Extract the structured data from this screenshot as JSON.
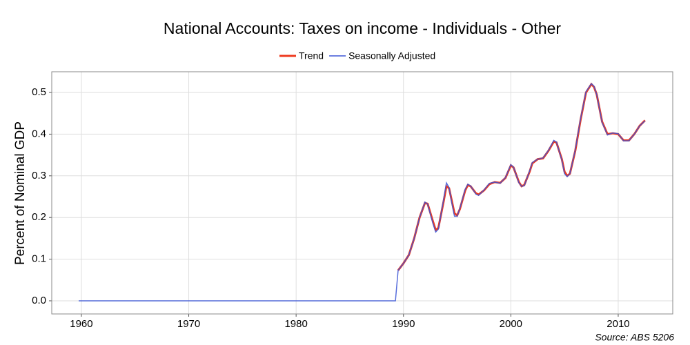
{
  "chart_data": {
    "type": "line",
    "title": "National Accounts: Taxes on income - Individuals - Other",
    "y_label": "Percent of Nominal GDP",
    "annotation": "Source: ABS 5206",
    "xlim": [
      1957.24,
      2015.08
    ],
    "ylim": [
      -0.0315,
      0.5497
    ],
    "xticks": [
      1960,
      1970,
      1980,
      1990,
      2000,
      2010
    ],
    "yticks": [
      {
        "value": 0,
        "label": "0.0"
      },
      0.1,
      0.2,
      0.3,
      0.4,
      0.5
    ],
    "grid": true,
    "legend": "top",
    "series": [
      {
        "name": "Trend",
        "color": "#ee3a1f",
        "x": [
          1989.5,
          1990,
          1990.5,
          1991,
          1991.5,
          1992,
          1992.25,
          1992.75,
          1993,
          1993.25,
          1993.75,
          1994,
          1994.25,
          1994.5,
          1994.75,
          1995,
          1995.25,
          1995.75,
          1996,
          1996.25,
          1996.75,
          1997,
          1997.5,
          1998,
          1998.5,
          1999,
          1999.5,
          2000,
          2000.25,
          2000.75,
          2001,
          2001.25,
          2001.75,
          2002,
          2002.5,
          2003,
          2003.5,
          2004,
          2004.25,
          2004.75,
          2005,
          2005.25,
          2005.5,
          2006,
          2006.5,
          2007,
          2007.5,
          2007.75,
          2008,
          2008.5,
          2009,
          2009.5,
          2010,
          2010.5,
          2011,
          2011.5,
          2012,
          2012.5
        ],
        "values": [
          0.073,
          0.09,
          0.11,
          0.15,
          0.2,
          0.235,
          0.233,
          0.19,
          0.17,
          0.175,
          0.24,
          0.275,
          0.27,
          0.24,
          0.21,
          0.205,
          0.22,
          0.265,
          0.278,
          0.275,
          0.258,
          0.255,
          0.265,
          0.28,
          0.285,
          0.283,
          0.295,
          0.325,
          0.32,
          0.285,
          0.275,
          0.278,
          0.31,
          0.33,
          0.34,
          0.342,
          0.36,
          0.382,
          0.38,
          0.34,
          0.31,
          0.3,
          0.305,
          0.36,
          0.435,
          0.5,
          0.52,
          0.513,
          0.495,
          0.43,
          0.4,
          0.402,
          0.4,
          0.385,
          0.385,
          0.4,
          0.42,
          0.433
        ]
      },
      {
        "name": "Seasonally Adjusted",
        "color": "#3b55d6",
        "x": [
          1959.75,
          1989.25,
          1989.5,
          1990,
          1990.5,
          1991,
          1991.5,
          1992,
          1992.25,
          1992.75,
          1993,
          1993.25,
          1993.75,
          1994,
          1994.25,
          1994.5,
          1994.75,
          1995,
          1995.25,
          1995.75,
          1996,
          1996.25,
          1996.75,
          1997,
          1997.5,
          1998,
          1998.5,
          1999,
          1999.5,
          2000,
          2000.25,
          2000.75,
          2001,
          2001.25,
          2001.75,
          2002,
          2002.5,
          2003,
          2003.5,
          2004,
          2004.25,
          2004.75,
          2005,
          2005.25,
          2005.5,
          2006,
          2006.5,
          2007,
          2007.5,
          2007.75,
          2008,
          2008.5,
          2009,
          2009.5,
          2010,
          2010.5,
          2011,
          2011.5,
          2012,
          2012.5
        ],
        "values": [
          0,
          0,
          0.073,
          0.09,
          0.11,
          0.15,
          0.2,
          0.237,
          0.232,
          0.185,
          0.165,
          0.172,
          0.245,
          0.283,
          0.272,
          0.235,
          0.203,
          0.203,
          0.222,
          0.268,
          0.28,
          0.276,
          0.256,
          0.253,
          0.266,
          0.282,
          0.285,
          0.282,
          0.296,
          0.327,
          0.321,
          0.283,
          0.275,
          0.276,
          0.312,
          0.332,
          0.34,
          0.343,
          0.361,
          0.385,
          0.381,
          0.338,
          0.305,
          0.298,
          0.305,
          0.362,
          0.438,
          0.502,
          0.521,
          0.515,
          0.495,
          0.428,
          0.398,
          0.403,
          0.401,
          0.384,
          0.384,
          0.4,
          0.42,
          0.432
        ]
      }
    ]
  }
}
